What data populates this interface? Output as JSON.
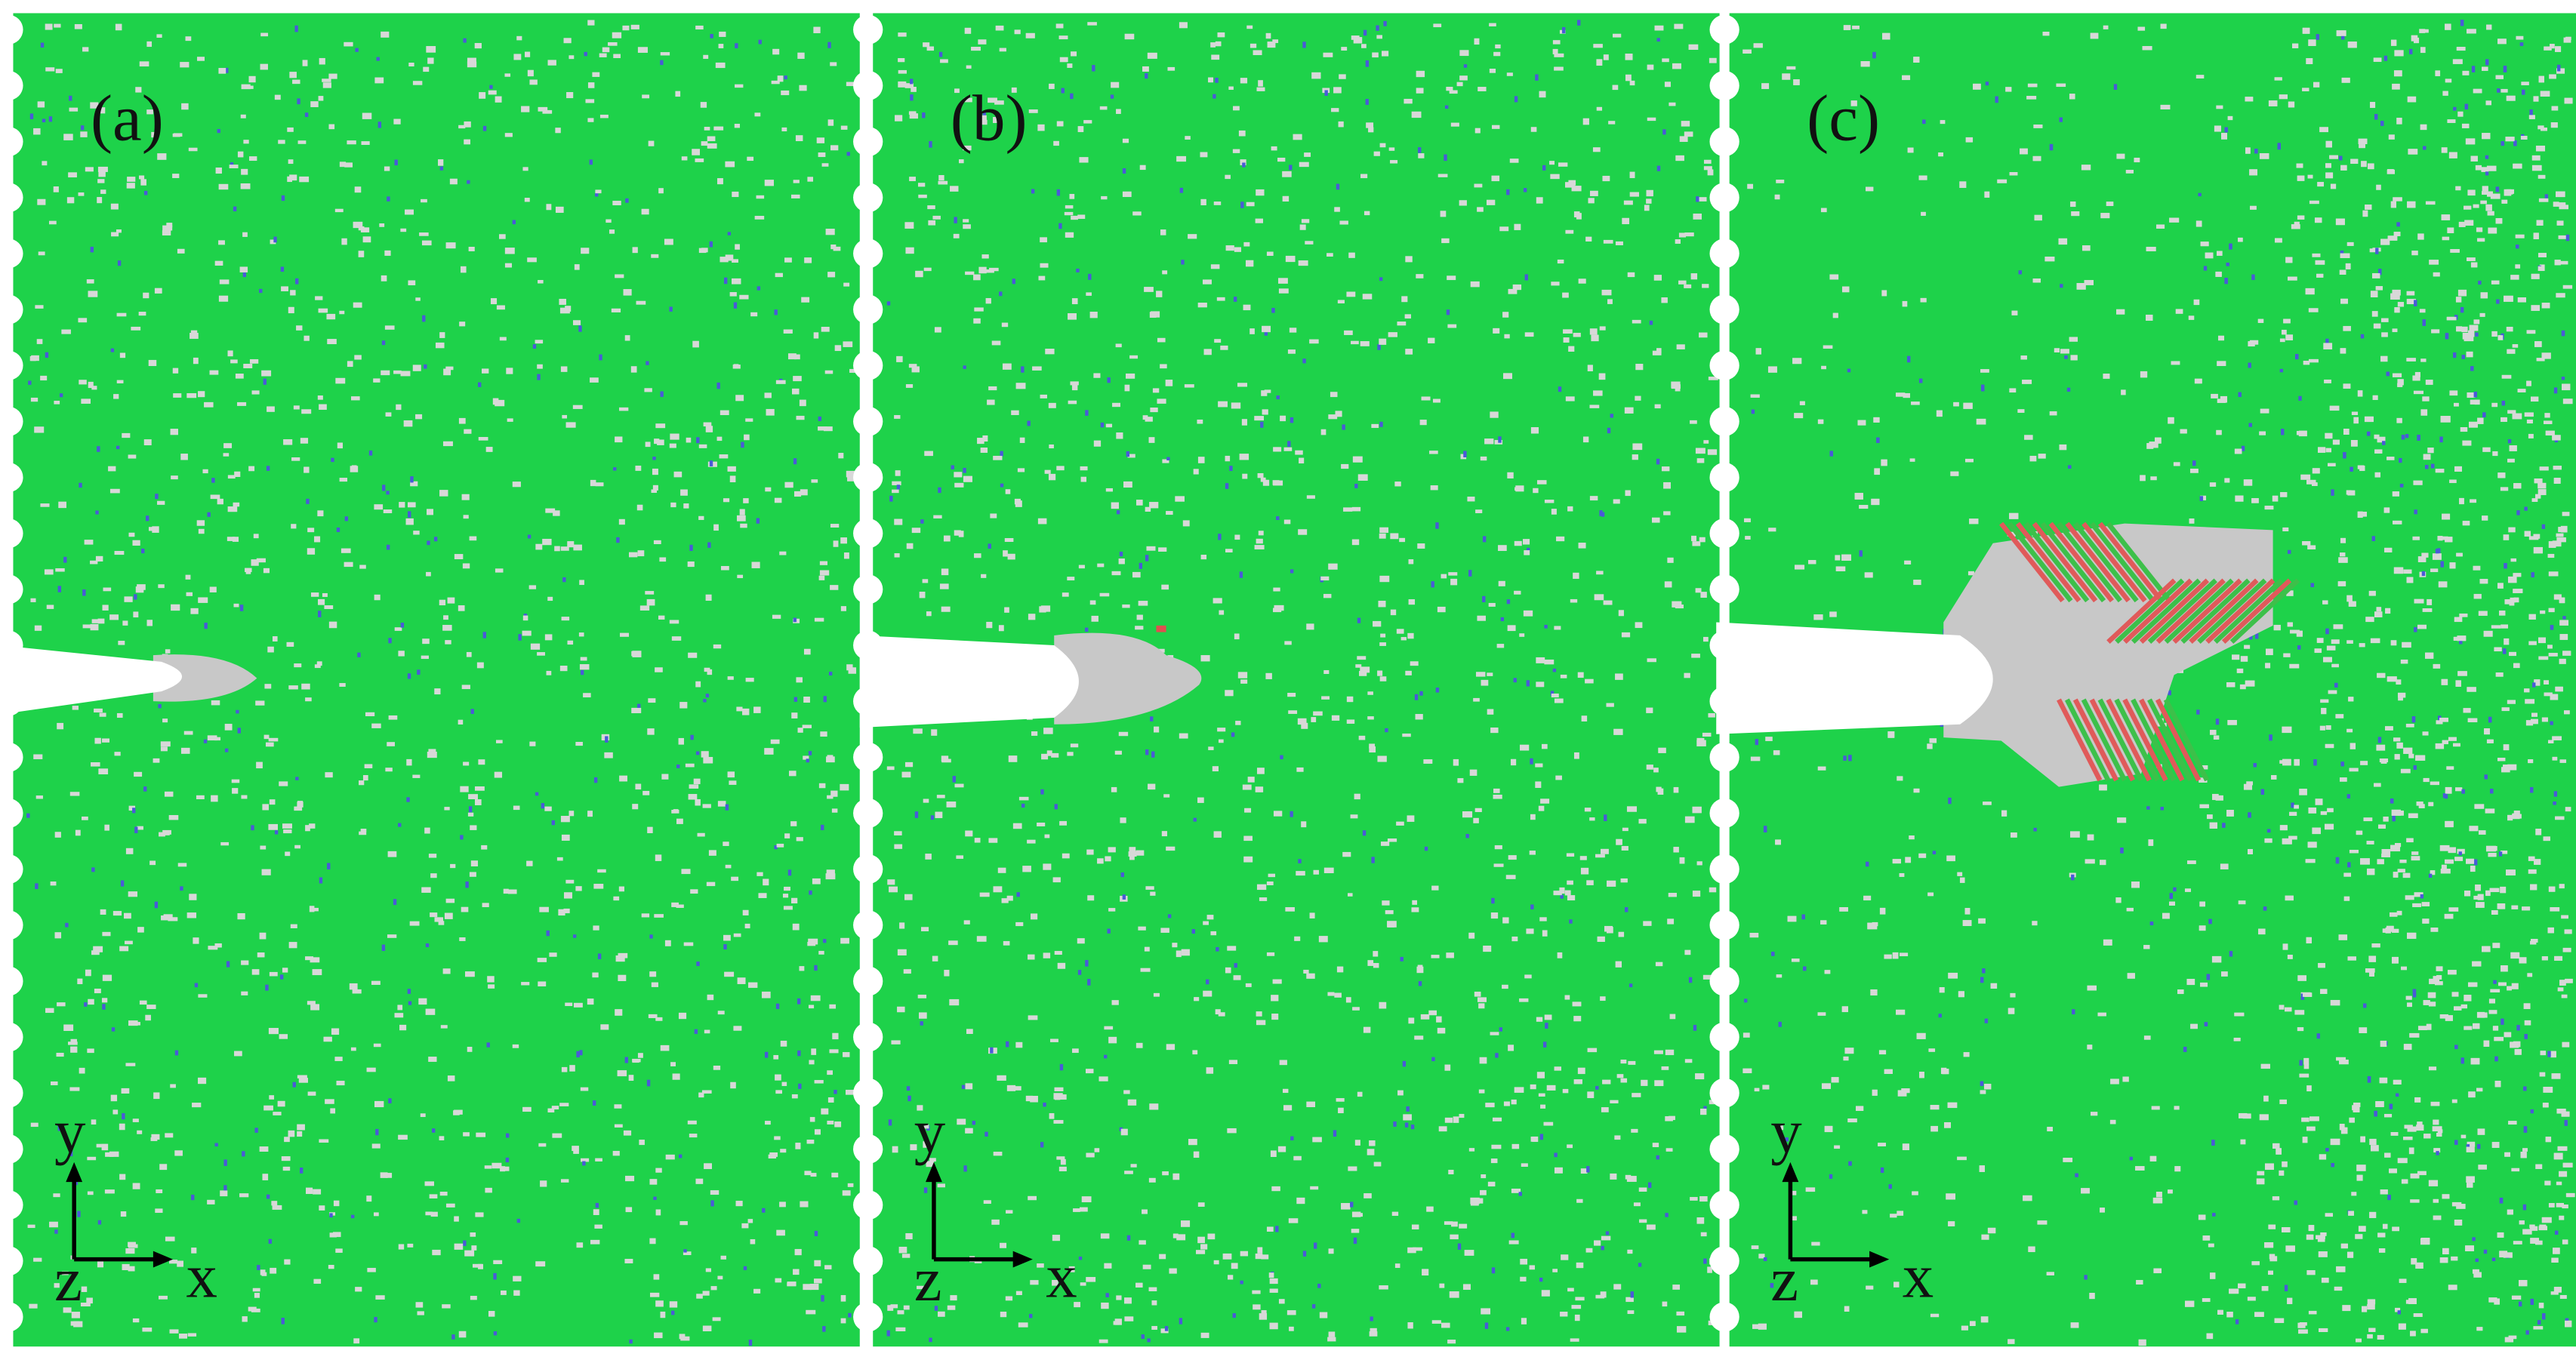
{
  "panels": [
    {
      "label": "(a)",
      "axes": {
        "y": "y",
        "x": "x",
        "z": "z"
      }
    },
    {
      "label": "(b)",
      "axes": {
        "y": "y",
        "x": "x",
        "z": "z"
      }
    },
    {
      "label": "(c)",
      "axes": {
        "y": "y",
        "x": "x",
        "z": "z"
      }
    }
  ]
}
